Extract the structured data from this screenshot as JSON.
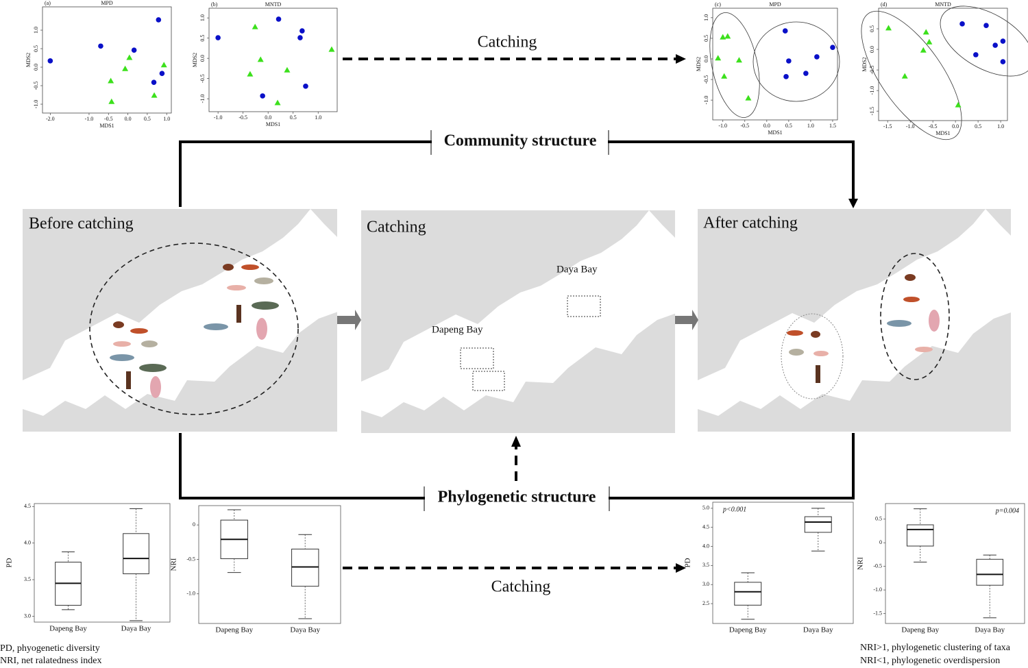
{
  "diagram": {
    "top_arrow_label": "Catching",
    "community_label": "Community structure",
    "phylogenetic_label": "Phylogenetic structure",
    "bottom_arrow_label": "Catching",
    "panels": [
      {
        "title": "Before catching"
      },
      {
        "title": "Catching",
        "bays": [
          "Daya Bay",
          "Dapeng Bay"
        ]
      },
      {
        "title": "After catching"
      }
    ],
    "notes_left": [
      "PD, phyogenetic diversity",
      "NRI, net ralatedness index"
    ],
    "notes_right": [
      "NRI>1, phylogenetic clustering of taxa",
      "NRI<1, phylogenetic overdispersion"
    ]
  },
  "chart_data": [
    {
      "type": "scatter",
      "panel": "(a)",
      "title": "MPD",
      "x_label": "MDS1",
      "y_label": "MDS2",
      "xlim": [
        -2.2,
        1.12
      ],
      "ylim": [
        -1.24,
        1.63
      ],
      "xticks": [
        {
          "value": -2,
          "label": "-2.0"
        },
        {
          "value": -1,
          "label": "-1.0"
        },
        -0.5,
        {
          "value": 0,
          "label": "0.0"
        },
        0.5,
        {
          "value": 1,
          "label": "1.0"
        }
      ],
      "yticks": [
        {
          "value": -1,
          "label": "-1.0"
        },
        -0.5,
        {
          "value": 0,
          "label": "0.0"
        },
        0.5,
        {
          "value": 1,
          "label": "1.0"
        }
      ],
      "series": [
        {
          "color": "#0a10c8",
          "marker": "circle",
          "x": [
            -2.0,
            -0.7,
            0.16,
            0.79,
            0.88,
            0.67
          ],
          "y": [
            0.17,
            0.57,
            0.46,
            1.28,
            -0.17,
            -0.41
          ]
        },
        {
          "color": "#3ce01c",
          "marker": "triangle",
          "x": [
            0.04,
            -0.07,
            -0.44,
            0.68,
            -0.42,
            0.93
          ],
          "y": [
            0.26,
            -0.04,
            -0.37,
            -0.76,
            -0.93,
            0.06
          ]
        }
      ]
    },
    {
      "type": "scatter",
      "panel": "(b)",
      "title": "MNTD",
      "x_label": "MDS1",
      "y_label": "MDS2",
      "xlim": [
        -1.18,
        1.38
      ],
      "ylim": [
        -1.32,
        1.24
      ],
      "xticks": [
        {
          "value": -1,
          "label": "-1.0"
        },
        -0.5,
        {
          "value": 0,
          "label": "0.0"
        },
        0.5,
        {
          "value": 1,
          "label": "1.0"
        }
      ],
      "yticks": [
        {
          "value": -1,
          "label": "-1.0"
        },
        -0.5,
        {
          "value": 0,
          "label": "0.0"
        },
        0.5,
        {
          "value": 1,
          "label": "1.0"
        }
      ],
      "series": [
        {
          "color": "#0a10c8",
          "marker": "circle",
          "x": [
            -1.0,
            0.21,
            0.68,
            0.64,
            0.75,
            -0.11
          ],
          "y": [
            0.51,
            0.97,
            0.68,
            0.51,
            -0.69,
            -0.93
          ]
        },
        {
          "color": "#3ce01c",
          "marker": "triangle",
          "x": [
            -0.26,
            1.27,
            -0.15,
            0.38,
            -0.36,
            0.19
          ],
          "y": [
            0.78,
            0.22,
            -0.03,
            -0.29,
            -0.39,
            -1.1
          ]
        }
      ]
    },
    {
      "type": "scatter",
      "panel": "(c)",
      "title": "MPD",
      "x_label": "MDS1",
      "y_label": "MDS2",
      "xlim": [
        -1.23,
        1.61
      ],
      "ylim": [
        -1.48,
        1.23
      ],
      "xticks": [
        {
          "value": -1,
          "label": "-1.0"
        },
        -0.5,
        {
          "value": 0,
          "label": "0.0"
        },
        0.5,
        {
          "value": 1,
          "label": "1.0"
        },
        1.5
      ],
      "yticks": [
        {
          "value": -1,
          "label": "-1.0"
        },
        -0.5,
        {
          "value": 0,
          "label": "0.0"
        },
        0.5,
        {
          "value": 1,
          "label": "1.0"
        }
      ],
      "series": [
        {
          "color": "#3ce01c",
          "marker": "triangle",
          "x": [
            -1.0,
            -0.89,
            -1.11,
            -0.63,
            -0.97,
            -0.42
          ],
          "y": [
            0.53,
            0.55,
            0.02,
            -0.03,
            -0.42,
            -0.95
          ]
        },
        {
          "color": "#0a10c8",
          "marker": "circle",
          "x": [
            0.42,
            0.5,
            1.14,
            1.5,
            0.89,
            0.44
          ],
          "y": [
            0.68,
            -0.05,
            0.05,
            0.28,
            -0.35,
            -0.43
          ]
        }
      ]
    },
    {
      "type": "scatter",
      "panel": "(d)",
      "title": "MNTD",
      "x_label": "MDS1",
      "y_label": "MDS2",
      "xlim": [
        -1.7,
        1.15
      ],
      "ylim": [
        -1.73,
        1.0
      ],
      "xticks": [
        -1.5,
        {
          "value": -1,
          "label": "-1.0"
        },
        -0.5,
        {
          "value": 0,
          "label": "0.0"
        },
        0.5,
        {
          "value": 1,
          "label": "1.0"
        }
      ],
      "yticks": [
        -1.5,
        {
          "value": -1,
          "label": "-1.0"
        },
        -0.5,
        {
          "value": 0,
          "label": "0.0"
        },
        0.5
      ],
      "series": [
        {
          "color": "#3ce01c",
          "marker": "triangle",
          "x": [
            -1.48,
            -0.65,
            -0.58,
            -0.71,
            -1.12,
            0.06
          ],
          "y": [
            0.52,
            0.42,
            0.18,
            -0.02,
            -0.65,
            -1.35
          ]
        },
        {
          "color": "#0a10c8",
          "marker": "circle",
          "x": [
            0.15,
            0.68,
            0.45,
            0.88,
            1.05,
            1.05
          ],
          "y": [
            0.62,
            0.58,
            -0.13,
            0.1,
            0.2,
            -0.3
          ]
        }
      ]
    },
    {
      "type": "box",
      "y_label": "PD",
      "categories": [
        "Dapeng Bay",
        "Daya Bay"
      ],
      "ylim": [
        2.92,
        4.54
      ],
      "yticks": [
        {
          "value": 3,
          "label": "3.0"
        },
        3.5,
        {
          "value": 4,
          "label": "4.0"
        },
        4.5
      ],
      "boxes": [
        {
          "min": 3.09,
          "q1": 3.15,
          "median": 3.45,
          "q3": 3.74,
          "max": 3.88
        },
        {
          "min": 2.94,
          "q1": 3.58,
          "median": 3.79,
          "q3": 4.13,
          "max": 4.47
        }
      ]
    },
    {
      "type": "box",
      "y_label": "NRI",
      "categories": [
        "Dapeng Bay",
        "Daya Bay"
      ],
      "ylim": [
        -1.43,
        0.28
      ],
      "yticks": [
        {
          "value": -1,
          "label": "-1.0"
        },
        -0.5,
        0
      ],
      "boxes": [
        {
          "min": -0.69,
          "q1": -0.49,
          "median": -0.21,
          "q3": 0.07,
          "max": 0.22
        },
        {
          "min": -1.36,
          "q1": -0.89,
          "median": -0.61,
          "q3": -0.35,
          "max": -0.14
        }
      ]
    },
    {
      "type": "box",
      "y_label": "PD",
      "categories": [
        "Dapeng Bay",
        "Daya Bay"
      ],
      "annotation": "p<0.001",
      "ylim": [
        1.98,
        5.16
      ],
      "yticks": [
        2.5,
        {
          "value": 3,
          "label": "3.0"
        },
        3.5,
        {
          "value": 4,
          "label": "4.0"
        },
        4.5,
        {
          "value": 5,
          "label": "5.0"
        }
      ],
      "boxes": [
        {
          "min": 2.09,
          "q1": 2.46,
          "median": 2.81,
          "q3": 3.06,
          "max": 3.31
        },
        {
          "min": 3.88,
          "q1": 4.37,
          "median": 4.64,
          "q3": 4.78,
          "max": 5.0
        }
      ]
    },
    {
      "type": "box",
      "y_label": "NRI",
      "categories": [
        "Dapeng Bay",
        "Daya Bay"
      ],
      "annotation": "p=0.004",
      "ylim": [
        -1.71,
        0.83
      ],
      "yticks": [
        -1.5,
        {
          "value": -1,
          "label": "-1.0"
        },
        -0.5,
        0,
        0.5
      ],
      "boxes": [
        {
          "min": -0.41,
          "q1": -0.07,
          "median": 0.28,
          "q3": 0.38,
          "max": 0.72
        },
        {
          "min": -1.59,
          "q1": -0.9,
          "median": -0.67,
          "q3": -0.35,
          "max": -0.26
        }
      ]
    }
  ]
}
